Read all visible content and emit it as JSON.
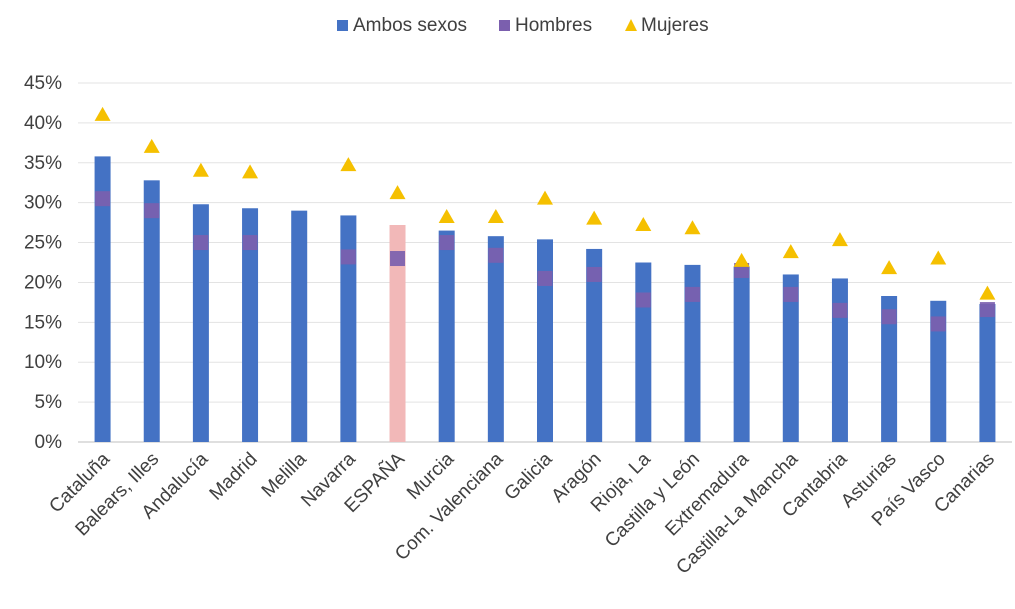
{
  "chart_data": {
    "type": "bar",
    "categories": [
      "Cataluña",
      "Balears, Illes",
      "Andalucía",
      "Madrid",
      "Melilla",
      "Navarra",
      "ESPAÑA",
      "Murcia",
      "Com. Valenciana",
      "Galicia",
      "Aragón",
      "Rioja, La",
      "Castilla y León",
      "Extremadura",
      "Castilla-La Mancha",
      "Cantabria",
      "Asturias",
      "País Vasco",
      "Canarias"
    ],
    "series": [
      {
        "name": "Ambos sexos",
        "marker": "bar",
        "color": "#4472C4",
        "values": [
          35.8,
          32.8,
          29.8,
          29.3,
          29.0,
          28.4,
          27.2,
          26.5,
          25.8,
          25.4,
          24.2,
          22.5,
          22.2,
          22.0,
          21.0,
          20.5,
          18.3,
          17.7,
          17.3
        ]
      },
      {
        "name": "Hombres",
        "marker": "square",
        "color": "#7B5FAE",
        "values": [
          30.5,
          29.0,
          25.0,
          25.0,
          null,
          23.2,
          23.0,
          25.0,
          23.4,
          20.5,
          21.0,
          17.8,
          18.5,
          21.5,
          18.5,
          16.5,
          15.7,
          14.8,
          16.6
        ]
      },
      {
        "name": "Mujeres",
        "marker": "triangle",
        "color": "#F5C000",
        "values": [
          41.0,
          37.0,
          34.0,
          33.8,
          null,
          34.7,
          31.2,
          28.2,
          28.2,
          30.5,
          28.0,
          27.2,
          26.8,
          22.7,
          23.8,
          25.3,
          21.8,
          23.0,
          18.6
        ]
      }
    ],
    "highlight": {
      "category": "ESPAÑA",
      "color": "#F2B8B8"
    },
    "ylim": [
      0,
      45
    ],
    "yticks": [
      "0%",
      "5%",
      "10%",
      "15%",
      "20%",
      "25%",
      "30%",
      "35%",
      "40%",
      "45%"
    ],
    "grid": true,
    "legend_position": "top-center",
    "xlabel": "",
    "ylabel": ""
  }
}
